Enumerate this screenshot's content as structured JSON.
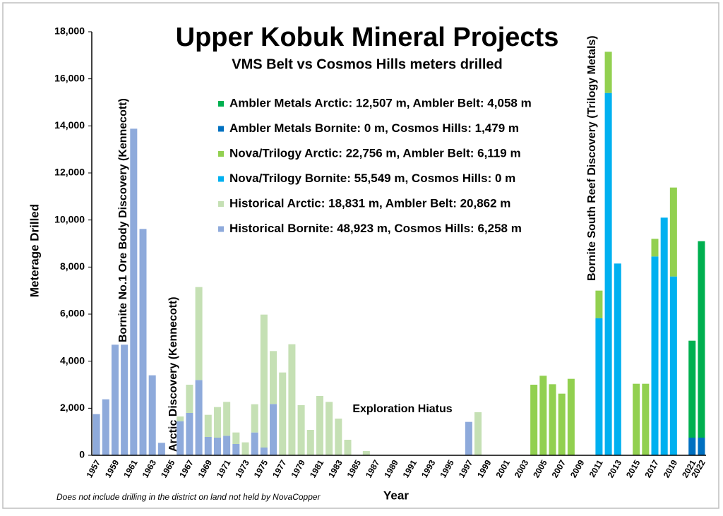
{
  "chart_data": {
    "type": "stacked_bar",
    "title": "Upper Kobuk Mineral Projects",
    "subtitle": "VMS Belt vs Cosmos Hills meters drilled",
    "x_label": "Year",
    "y_label": "Meterage Drilled",
    "footnote": "Does not include drilling in the district on land not held by NovaCopper",
    "annotations": [
      "Bornite No.1 Ore Body Discovery (Kennecott)",
      "Arctic Discovery (Kennecott)",
      "Bornite South Reef Discovery (Trilogy Metals)",
      "Exploration Hiatus"
    ],
    "categories": [
      "1957",
      null,
      "1959",
      null,
      "1961",
      null,
      "1963",
      null,
      "1965",
      null,
      "1967",
      null,
      "1969",
      null,
      "1971",
      null,
      "1973",
      null,
      "1975",
      null,
      "1977",
      null,
      "1979",
      null,
      "1981",
      null,
      "1983",
      null,
      "1985",
      null,
      "1987",
      null,
      "1989",
      null,
      "1991",
      null,
      "1993",
      null,
      "1995",
      null,
      "1997",
      null,
      "1999",
      null,
      "2001",
      null,
      "2003",
      null,
      "2005",
      null,
      "2007",
      null,
      "2009",
      null,
      "2011",
      null,
      "2013",
      null,
      "2015",
      null,
      "2017",
      null,
      "2019",
      null,
      "2021",
      "2022"
    ],
    "series": [
      {
        "name": "Historical Bornite: 48,923 m, Cosmos Hills: 6,258 m",
        "color": "#8eaadb",
        "values": [
          1750,
          2380,
          4700,
          4700,
          13880,
          9620,
          3400,
          530,
          0,
          1450,
          1800,
          3200,
          780,
          750,
          830,
          480,
          0,
          970,
          330,
          2180,
          0,
          0,
          0,
          0,
          0,
          0,
          0,
          0,
          0,
          0,
          0,
          0,
          0,
          0,
          0,
          0,
          0,
          0,
          0,
          0,
          1420,
          0,
          0,
          0,
          0,
          0,
          0,
          0,
          0,
          0,
          0,
          0,
          0,
          0,
          0,
          0,
          0,
          0,
          0,
          0,
          0,
          0,
          0,
          0,
          0,
          0
        ]
      },
      {
        "name": "Historical Arctic: 18,831 m, Ambler Belt: 20,862 m",
        "color": "#c5e0b4",
        "values": [
          0,
          0,
          0,
          0,
          0,
          0,
          0,
          0,
          0,
          200,
          1200,
          3950,
          940,
          1300,
          1440,
          490,
          550,
          1200,
          5650,
          2250,
          3520,
          4720,
          2130,
          1080,
          2520,
          2270,
          1560,
          660,
          0,
          180,
          0,
          0,
          0,
          0,
          0,
          0,
          0,
          0,
          0,
          0,
          0,
          1830,
          0,
          0,
          0,
          0,
          0,
          0,
          0,
          0,
          0,
          0,
          0,
          0,
          0,
          0,
          0,
          0,
          0,
          0,
          0,
          0,
          0,
          0,
          0,
          0
        ]
      },
      {
        "name": "Nova/Trilogy Bornite: 55,549 m, Cosmos Hills: 0 m",
        "color": "#00b0f0",
        "values": [
          0,
          0,
          0,
          0,
          0,
          0,
          0,
          0,
          0,
          0,
          0,
          0,
          0,
          0,
          0,
          0,
          0,
          0,
          0,
          0,
          0,
          0,
          0,
          0,
          0,
          0,
          0,
          0,
          0,
          0,
          0,
          0,
          0,
          0,
          0,
          0,
          0,
          0,
          0,
          0,
          0,
          0,
          0,
          0,
          0,
          0,
          0,
          0,
          0,
          0,
          0,
          0,
          0,
          0,
          5830,
          15400,
          8150,
          0,
          0,
          0,
          8450,
          10100,
          7600,
          0,
          0,
          0
        ]
      },
      {
        "name": "Nova/Trilogy Arctic: 22,756 m, Ambler Belt: 6,119 m",
        "color": "#92d050",
        "values": [
          0,
          0,
          0,
          0,
          0,
          0,
          0,
          0,
          0,
          0,
          0,
          0,
          0,
          0,
          0,
          0,
          0,
          0,
          0,
          0,
          0,
          0,
          0,
          0,
          0,
          0,
          0,
          0,
          0,
          0,
          0,
          0,
          0,
          0,
          0,
          0,
          0,
          0,
          0,
          0,
          0,
          0,
          0,
          0,
          0,
          0,
          0,
          3000,
          3380,
          3020,
          2620,
          3250,
          0,
          0,
          1170,
          1750,
          0,
          0,
          3040,
          3040,
          750,
          0,
          3780,
          0,
          0,
          0
        ]
      },
      {
        "name": "Ambler Metals Bornite: 0 m, Cosmos Hills: 1,479 m",
        "color": "#0070c0",
        "values": [
          0,
          0,
          0,
          0,
          0,
          0,
          0,
          0,
          0,
          0,
          0,
          0,
          0,
          0,
          0,
          0,
          0,
          0,
          0,
          0,
          0,
          0,
          0,
          0,
          0,
          0,
          0,
          0,
          0,
          0,
          0,
          0,
          0,
          0,
          0,
          0,
          0,
          0,
          0,
          0,
          0,
          0,
          0,
          0,
          0,
          0,
          0,
          0,
          0,
          0,
          0,
          0,
          0,
          0,
          0,
          0,
          0,
          0,
          0,
          0,
          0,
          0,
          0,
          0,
          750,
          750
        ]
      },
      {
        "name": "Ambler Metals Arctic: 12,507 m, Ambler Belt: 4,058 m",
        "color": "#00b050",
        "values": [
          0,
          0,
          0,
          0,
          0,
          0,
          0,
          0,
          0,
          0,
          0,
          0,
          0,
          0,
          0,
          0,
          0,
          0,
          0,
          0,
          0,
          0,
          0,
          0,
          0,
          0,
          0,
          0,
          0,
          0,
          0,
          0,
          0,
          0,
          0,
          0,
          0,
          0,
          0,
          0,
          0,
          0,
          0,
          0,
          0,
          0,
          0,
          0,
          0,
          0,
          0,
          0,
          0,
          0,
          0,
          0,
          0,
          0,
          0,
          0,
          0,
          0,
          0,
          0,
          4120,
          8350
        ]
      }
    ],
    "ylim": [
      0,
      18000
    ],
    "yticks": [
      0,
      {
        "value": 2000,
        "label": "2,000"
      },
      {
        "value": 4000,
        "label": "4,000"
      },
      {
        "value": 6000,
        "label": "6,000"
      },
      {
        "value": 8000,
        "label": "8,000"
      },
      {
        "value": 10000,
        "label": "10,000"
      },
      {
        "value": 12000,
        "label": "12,000"
      },
      {
        "value": 14000,
        "label": "14,000"
      },
      {
        "value": 16000,
        "label": "16,000"
      },
      {
        "value": 18000,
        "label": "18,000"
      }
    ],
    "grid": false
  }
}
